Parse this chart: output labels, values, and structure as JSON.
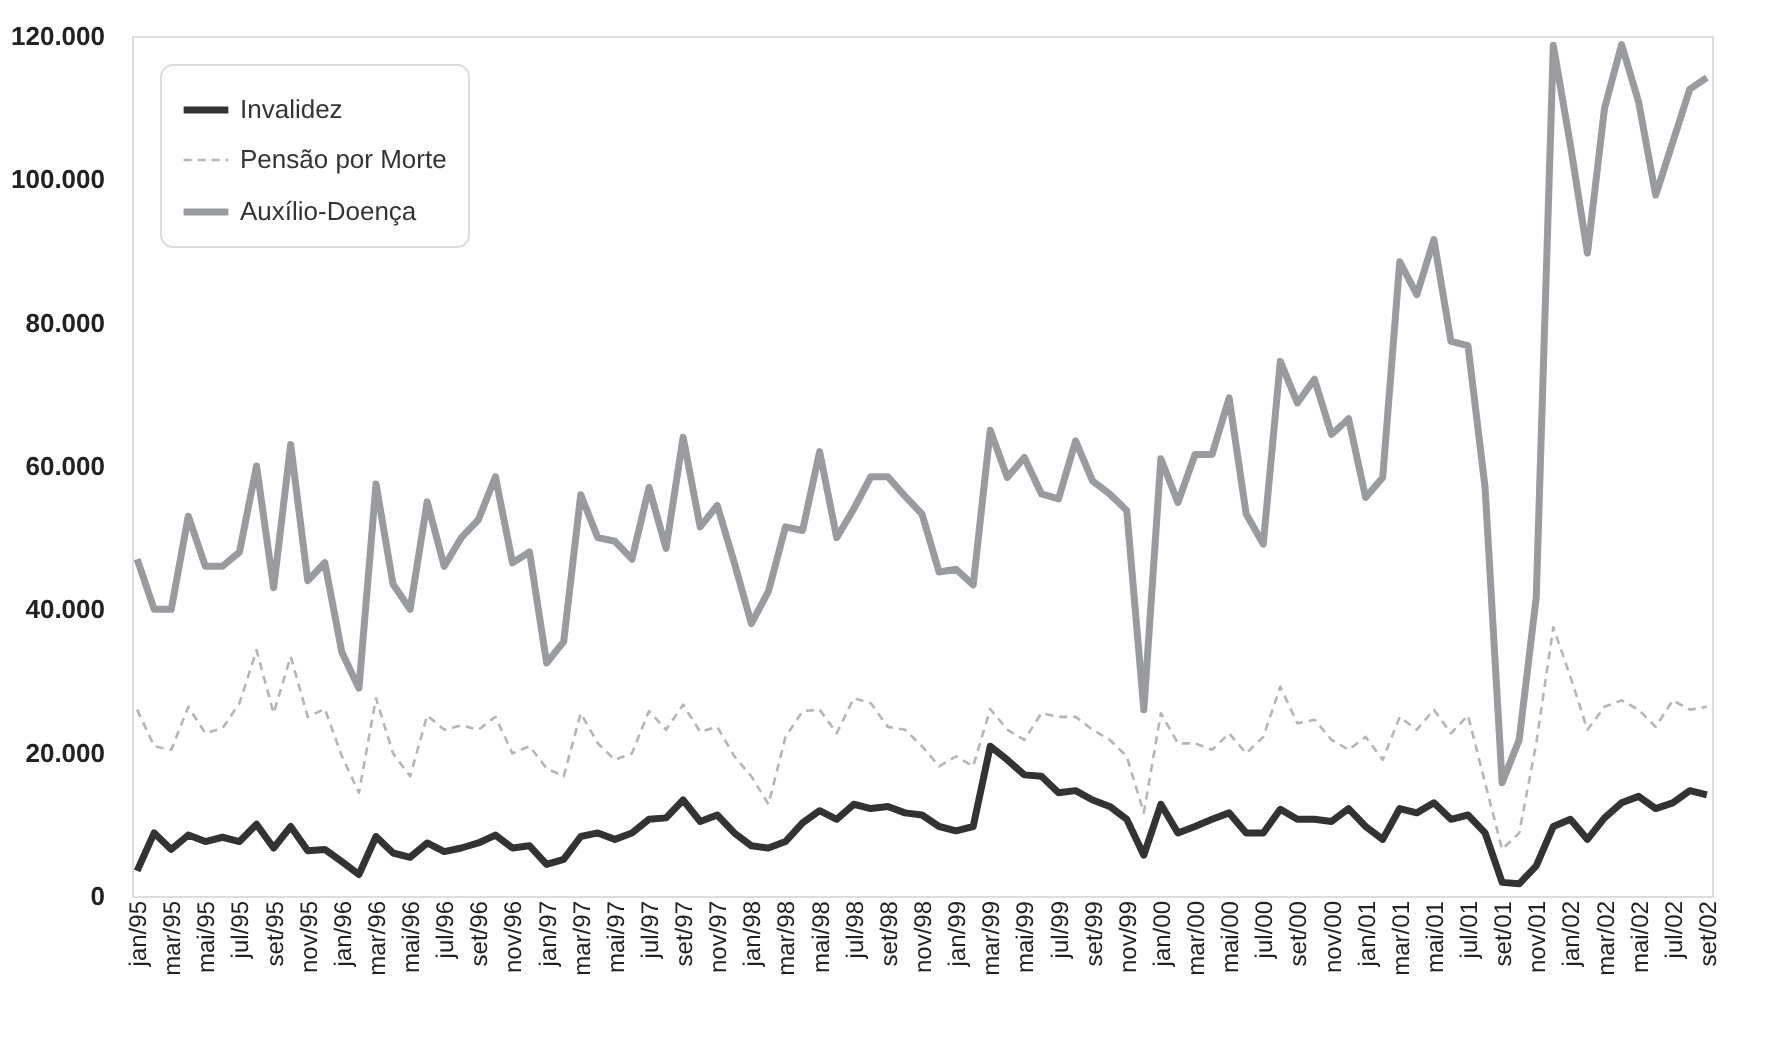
{
  "chart_data": {
    "type": "line",
    "categories": [
      "jan/95",
      null,
      "mar/95",
      null,
      "mai/95",
      null,
      "jul/95",
      null,
      "set/95",
      null,
      "nov/95",
      null,
      "jan/96",
      null,
      "mar/96",
      null,
      "mai/96",
      null,
      "jul/96",
      null,
      "set/96",
      null,
      "nov/96",
      null,
      "jan/97",
      null,
      "mar/97",
      null,
      "mai/97",
      null,
      "jul/97",
      null,
      "set/97",
      null,
      "nov/97",
      null,
      "jan/98",
      null,
      "mar/98",
      null,
      "mai/98",
      null,
      "jul/98",
      null,
      "set/98",
      null,
      "nov/98",
      null,
      "jan/99",
      null,
      "mar/99",
      null,
      "mai/99",
      null,
      "jul/99",
      null,
      "set/99",
      null,
      "nov/99",
      null,
      "jan/00",
      null,
      "mar/00",
      null,
      "mai/00",
      null,
      "jul/00",
      null,
      "set/00",
      null,
      "nov/00",
      null,
      "jan/01",
      null,
      "mar/01",
      null,
      "mai/01",
      null,
      "jul/01",
      null,
      "set/01",
      null,
      "nov/01",
      null,
      "jan/02",
      null,
      "mar/02",
      null,
      "mai/02",
      null,
      "jul/02",
      null,
      "set/02"
    ],
    "series": [
      {
        "name": "Invalidez",
        "color": "#333333",
        "line_style": "solid",
        "values": [
          3500,
          8800,
          6500,
          8500,
          7600,
          8200,
          7600,
          10000,
          6700,
          9700,
          6300,
          6500,
          4800,
          3000,
          8300,
          6000,
          5400,
          7400,
          6200,
          6700,
          7400,
          8500,
          6700,
          7000,
          4400,
          5100,
          8300,
          8800,
          7900,
          8800,
          10700,
          10900,
          13400,
          10400,
          11300,
          8800,
          7000,
          6700,
          7600,
          10200,
          11900,
          10700,
          12800,
          12200,
          12500,
          11600,
          11300,
          9700,
          9100,
          9700,
          20900,
          19000,
          16900,
          16700,
          14400,
          14700,
          13400,
          12500,
          10700,
          5700,
          12800,
          8800,
          9700,
          10700,
          11600,
          8800,
          8800,
          12100,
          10700,
          10700,
          10400,
          12200,
          9700,
          7900,
          12200,
          11600,
          13000,
          10700,
          11300,
          8800,
          1900,
          1700,
          4200,
          9700,
          10700,
          7900,
          10900,
          13000,
          13900,
          12200,
          13000,
          14700,
          14100
        ]
      },
      {
        "name": "Pensão por Morte",
        "color": "#b5b5b5",
        "line_style": "dashed",
        "values": [
          26000,
          20900,
          20400,
          26400,
          22700,
          23400,
          26900,
          34300,
          25500,
          33400,
          25000,
          26100,
          19500,
          14400,
          27600,
          19900,
          16700,
          25200,
          23200,
          23800,
          23200,
          25000,
          19900,
          20900,
          17800,
          16700,
          25500,
          21300,
          19000,
          19900,
          25800,
          23200,
          26700,
          22900,
          23600,
          19500,
          16700,
          12800,
          22200,
          25800,
          26000,
          22700,
          27600,
          26900,
          23600,
          23200,
          20900,
          18100,
          19500,
          18100,
          26100,
          23200,
          21800,
          25500,
          25000,
          25000,
          23200,
          21800,
          19500,
          11600,
          25500,
          21300,
          21300,
          20400,
          22700,
          19900,
          22200,
          29200,
          24100,
          24600,
          21800,
          20400,
          22200,
          19000,
          25000,
          23200,
          26000,
          22700,
          25200,
          15800,
          6500,
          8800,
          21300,
          37500,
          30600,
          23200,
          26400,
          27300,
          26000,
          23600,
          27300,
          26000,
          26400
        ]
      },
      {
        "name": "Auxílio-Doença",
        "color": "#9a9b9f",
        "line_style": "solid",
        "values": [
          47000,
          40000,
          40000,
          53000,
          46000,
          46000,
          48000,
          60000,
          43000,
          63000,
          44000,
          46500,
          34000,
          29000,
          57500,
          43500,
          40000,
          55000,
          46000,
          50000,
          52500,
          58500,
          46500,
          48000,
          32500,
          35500,
          56000,
          50000,
          49500,
          47000,
          57000,
          48500,
          64000,
          51500,
          54500,
          46500,
          38000,
          42500,
          51500,
          51000,
          62000,
          50000,
          54000,
          58500,
          58500,
          55800,
          53300,
          45200,
          45600,
          43400,
          65000,
          58400,
          61200,
          56100,
          55400,
          63500,
          57900,
          56100,
          53800,
          26000,
          61000,
          54900,
          61600,
          61600,
          69500,
          53300,
          49100,
          74600,
          68800,
          72100,
          64400,
          66600,
          55600,
          58400,
          88500,
          83900,
          91600,
          77400,
          76800,
          57000,
          15800,
          21800,
          41700,
          118700,
          104800,
          89700,
          109900,
          118800,
          110800,
          97800,
          105200,
          112600,
          114200
        ]
      }
    ],
    "ylim": [
      0,
      120000
    ],
    "yticks": [
      0,
      {
        "value": 20000,
        "label": "20.000"
      },
      {
        "value": 40000,
        "label": "40.000"
      },
      {
        "value": 60000,
        "label": "60.000"
      },
      {
        "value": 80000,
        "label": "80.000"
      },
      {
        "value": 100000,
        "label": "100.000"
      },
      {
        "value": 120000,
        "label": "120.000"
      }
    ],
    "grid": false,
    "legend": "top left",
    "marker": "none"
  }
}
